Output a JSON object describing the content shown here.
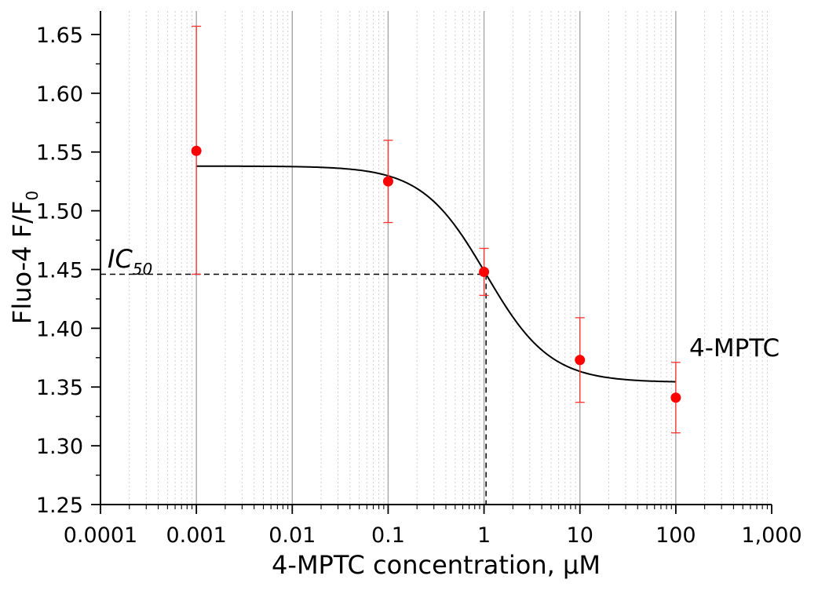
{
  "chart_data": {
    "type": "scatter",
    "xlabel": "4-MPTC concentration, μM",
    "ylabel": {
      "main": "Fluo-4  F/F",
      "subscript": "0"
    },
    "x_scale": "log",
    "xlim": [
      0.0001,
      1000
    ],
    "ylim": [
      1.25,
      1.67
    ],
    "x_ticks": [
      0.0001,
      0.001,
      0.01,
      0.1,
      1,
      10,
      100,
      1000
    ],
    "x_tick_labels": [
      "0.0001",
      "0.001",
      "0.01",
      "0.1",
      "1",
      "10",
      "100",
      "1,000"
    ],
    "y_ticks": [
      1.25,
      1.3,
      1.35,
      1.4,
      1.45,
      1.5,
      1.55,
      1.6,
      1.65
    ],
    "y_tick_labels": [
      "1.25",
      "1.30",
      "1.35",
      "1.40",
      "1.45",
      "1.50",
      "1.55",
      "1.60",
      "1.65"
    ],
    "grid": {
      "major_vertical": true,
      "minor_vertical": true,
      "horizontal": false
    },
    "series": [
      {
        "name": "4-MPTC",
        "kind": "scatter",
        "color": "#ff0000",
        "points": [
          {
            "x": 0.001,
            "y": 1.551,
            "err_low": 1.446,
            "err_high": 1.657
          },
          {
            "x": 0.1,
            "y": 1.525,
            "err_low": 1.49,
            "err_high": 1.56
          },
          {
            "x": 1,
            "y": 1.448,
            "err_low": 1.428,
            "err_high": 1.468
          },
          {
            "x": 10,
            "y": 1.373,
            "err_low": 1.337,
            "err_high": 1.409
          },
          {
            "x": 100,
            "y": 1.341,
            "err_low": 1.311,
            "err_high": 1.371
          }
        ]
      },
      {
        "kind": "line",
        "color": "#000000",
        "fit": {
          "model": "logistic",
          "top": 1.538,
          "bottom": 1.354,
          "ic50": 1.05,
          "hill": 1.3,
          "x_from": 0.001,
          "x_to": 100
        }
      }
    ],
    "annotations": {
      "ic50_label": "IC",
      "ic50_subscript": "50",
      "ic50_x": 1.05,
      "ic50_y": 1.446,
      "series_label": "4-MPTC"
    },
    "colors": {
      "axis": "#000000",
      "major_grid": "#a6a6a6",
      "minor_grid": "#d0d0d0",
      "error_bar": "#ff3030"
    }
  }
}
